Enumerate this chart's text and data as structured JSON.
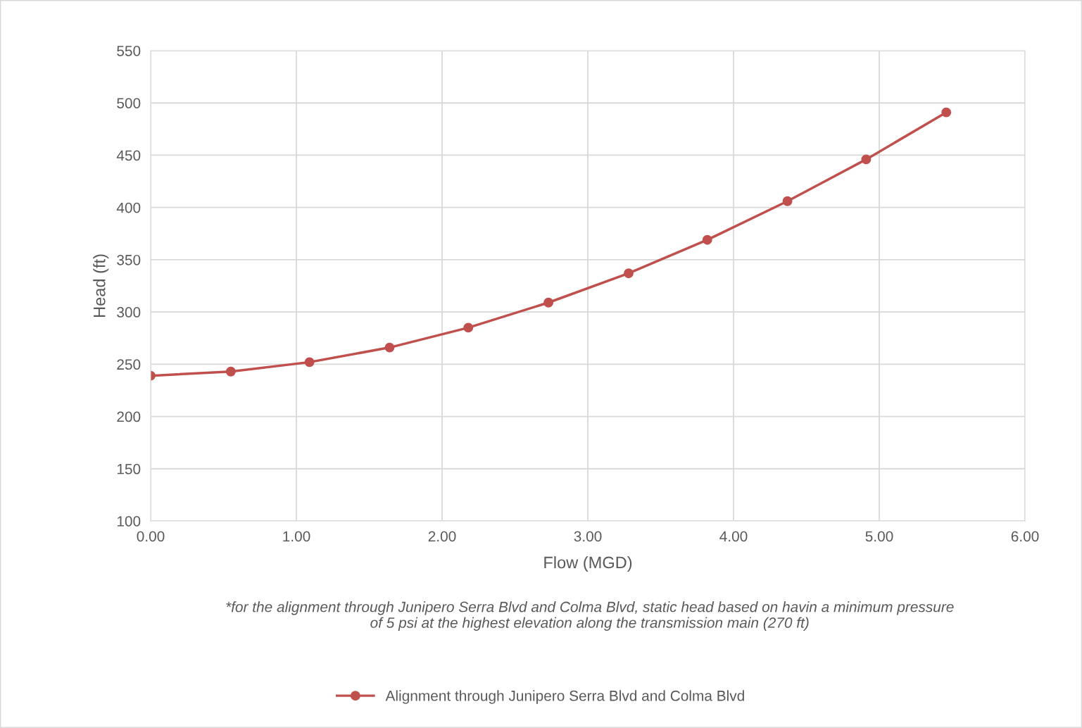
{
  "chart_data": {
    "type": "line",
    "xlabel": "Flow (MGD)",
    "ylabel": "Head (ft)",
    "x": [
      0,
      0.55,
      1.09,
      1.64,
      2.18,
      2.73,
      3.28,
      3.82,
      4.37,
      4.91,
      5.46
    ],
    "series": [
      {
        "name": "Alignment through Junipero Serra Blvd and Colma Blvd",
        "color": "#c0504d",
        "values": [
          239,
          243,
          252,
          266,
          285,
          309,
          337,
          369,
          406,
          446,
          491
        ]
      }
    ],
    "xlim": [
      0,
      6
    ],
    "xticks": [
      {
        "value": 0,
        "label": "0.00"
      },
      {
        "value": 1,
        "label": "1.00"
      },
      {
        "value": 2,
        "label": "2.00"
      },
      {
        "value": 3,
        "label": "3.00"
      },
      {
        "value": 4,
        "label": "4.00"
      },
      {
        "value": 5,
        "label": "5.00"
      },
      {
        "value": 6,
        "label": "6.00"
      }
    ],
    "ylim": [
      100,
      550
    ],
    "yticks": [
      100,
      150,
      200,
      250,
      300,
      350,
      400,
      450,
      500,
      550
    ],
    "grid": true,
    "legend": "bottom",
    "marker": "circle",
    "line_style": "solid",
    "annotations": [
      "*for the alignment through Junipero Serra Blvd and Colma Blvd, static head based on havin a minimum pressure\nof 5 psi at the highest elevation along the transmission main (270 ft)"
    ]
  }
}
